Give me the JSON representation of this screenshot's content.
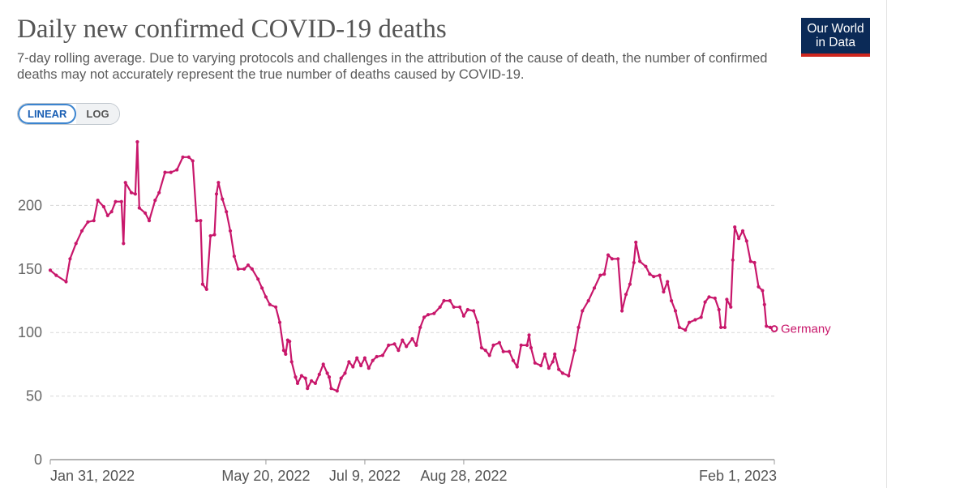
{
  "header": {
    "title": "Daily new confirmed COVID-19 deaths",
    "subtitle": "7-day rolling average. Due to varying protocols and challenges in the attribution of the cause of death, the number of confirmed deaths may not accurately represent the true number of deaths caused by COVID-19.",
    "logo_line1": "Our World",
    "logo_line2": "in Data"
  },
  "scale_toggle": {
    "linear_label": "LINEAR",
    "log_label": "LOG",
    "selected": "linear"
  },
  "colors": {
    "series": "#c8176b",
    "logo_bg": "#0b2a57",
    "logo_bar": "#ce261e",
    "grid": "#d8d8d8"
  },
  "chart_data": {
    "type": "line",
    "title": "Daily new confirmed COVID-19 deaths",
    "xlabel": "",
    "ylabel": "",
    "x_range": [
      "2022-01-31",
      "2023-02-01"
    ],
    "ylim": [
      0,
      250
    ],
    "y_ticks": [
      0,
      50,
      100,
      150,
      200
    ],
    "x_ticks": [
      {
        "date": "2022-01-31",
        "label": "Jan 31, 2022"
      },
      {
        "date": "2022-05-20",
        "label": "May 20, 2022"
      },
      {
        "date": "2022-07-09",
        "label": "Jul 9, 2022"
      },
      {
        "date": "2022-08-28",
        "label": "Aug 28, 2022"
      },
      {
        "date": "2023-02-01",
        "label": "Feb 1, 2023"
      }
    ],
    "grid": "horizontal dashed",
    "series": [
      {
        "name": "Germany",
        "points": [
          [
            "2022-01-31",
            149
          ],
          [
            "2022-02-03",
            145
          ],
          [
            "2022-02-08",
            140
          ],
          [
            "2022-02-10",
            158
          ],
          [
            "2022-02-13",
            170
          ],
          [
            "2022-02-16",
            180
          ],
          [
            "2022-02-19",
            187
          ],
          [
            "2022-02-22",
            188
          ],
          [
            "2022-02-24",
            204
          ],
          [
            "2022-02-27",
            199
          ],
          [
            "2022-03-01",
            192
          ],
          [
            "2022-03-03",
            195
          ],
          [
            "2022-03-05",
            203
          ],
          [
            "2022-03-08",
            203
          ],
          [
            "2022-03-09",
            170
          ],
          [
            "2022-03-10",
            218
          ],
          [
            "2022-03-13",
            210
          ],
          [
            "2022-03-15",
            209
          ],
          [
            "2022-03-16",
            250
          ],
          [
            "2022-03-17",
            198
          ],
          [
            "2022-03-20",
            194
          ],
          [
            "2022-03-22",
            188
          ],
          [
            "2022-03-25",
            204
          ],
          [
            "2022-03-27",
            210
          ],
          [
            "2022-03-30",
            226
          ],
          [
            "2022-04-02",
            226
          ],
          [
            "2022-04-05",
            228
          ],
          [
            "2022-04-08",
            238
          ],
          [
            "2022-04-11",
            238
          ],
          [
            "2022-04-13",
            235
          ],
          [
            "2022-04-15",
            188
          ],
          [
            "2022-04-17",
            188
          ],
          [
            "2022-04-18",
            138
          ],
          [
            "2022-04-20",
            134
          ],
          [
            "2022-04-22",
            176
          ],
          [
            "2022-04-24",
            177
          ],
          [
            "2022-04-25",
            209
          ],
          [
            "2022-04-26",
            218
          ],
          [
            "2022-04-28",
            205
          ],
          [
            "2022-04-30",
            195
          ],
          [
            "2022-05-02",
            180
          ],
          [
            "2022-05-04",
            160
          ],
          [
            "2022-05-06",
            150
          ],
          [
            "2022-05-09",
            150
          ],
          [
            "2022-05-11",
            153
          ],
          [
            "2022-05-13",
            150
          ],
          [
            "2022-05-16",
            142
          ],
          [
            "2022-05-18",
            135
          ],
          [
            "2022-05-20",
            128
          ],
          [
            "2022-05-22",
            122
          ],
          [
            "2022-05-25",
            120
          ],
          [
            "2022-05-27",
            108
          ],
          [
            "2022-05-29",
            86
          ],
          [
            "2022-05-30",
            83
          ],
          [
            "2022-05-31",
            94
          ],
          [
            "2022-06-01",
            93
          ],
          [
            "2022-06-02",
            77
          ],
          [
            "2022-06-04",
            65
          ],
          [
            "2022-06-05",
            60
          ],
          [
            "2022-06-07",
            66
          ],
          [
            "2022-06-09",
            64
          ],
          [
            "2022-06-10",
            56
          ],
          [
            "2022-06-12",
            62
          ],
          [
            "2022-06-14",
            60
          ],
          [
            "2022-06-16",
            67
          ],
          [
            "2022-06-18",
            75
          ],
          [
            "2022-06-20",
            68
          ],
          [
            "2022-06-21",
            65
          ],
          [
            "2022-06-22",
            56
          ],
          [
            "2022-06-25",
            54
          ],
          [
            "2022-06-27",
            64
          ],
          [
            "2022-06-29",
            68
          ],
          [
            "2022-07-01",
            77
          ],
          [
            "2022-07-03",
            73
          ],
          [
            "2022-07-05",
            80
          ],
          [
            "2022-07-07",
            74
          ],
          [
            "2022-07-09",
            80
          ],
          [
            "2022-07-11",
            72
          ],
          [
            "2022-07-13",
            78
          ],
          [
            "2022-07-15",
            81
          ],
          [
            "2022-07-18",
            82
          ],
          [
            "2022-07-21",
            90
          ],
          [
            "2022-07-24",
            91
          ],
          [
            "2022-07-26",
            86
          ],
          [
            "2022-07-28",
            94
          ],
          [
            "2022-07-30",
            89
          ],
          [
            "2022-08-02",
            95
          ],
          [
            "2022-08-04",
            90
          ],
          [
            "2022-08-06",
            104
          ],
          [
            "2022-08-08",
            112
          ],
          [
            "2022-08-10",
            114
          ],
          [
            "2022-08-13",
            115
          ],
          [
            "2022-08-16",
            120
          ],
          [
            "2022-08-18",
            125
          ],
          [
            "2022-08-21",
            125
          ],
          [
            "2022-08-23",
            120
          ],
          [
            "2022-08-26",
            120
          ],
          [
            "2022-08-28",
            113
          ],
          [
            "2022-08-30",
            118
          ],
          [
            "2022-09-02",
            117
          ],
          [
            "2022-09-04",
            108
          ],
          [
            "2022-09-06",
            88
          ],
          [
            "2022-09-08",
            86
          ],
          [
            "2022-09-10",
            82
          ],
          [
            "2022-09-12",
            90
          ],
          [
            "2022-09-15",
            92
          ],
          [
            "2022-09-17",
            85
          ],
          [
            "2022-09-20",
            85
          ],
          [
            "2022-09-22",
            78
          ],
          [
            "2022-09-24",
            73
          ],
          [
            "2022-09-26",
            90
          ],
          [
            "2022-09-29",
            90
          ],
          [
            "2022-09-30",
            98
          ],
          [
            "2022-10-01",
            88
          ],
          [
            "2022-10-03",
            76
          ],
          [
            "2022-10-06",
            74
          ],
          [
            "2022-10-08",
            83
          ],
          [
            "2022-10-10",
            72
          ],
          [
            "2022-10-12",
            77
          ],
          [
            "2022-10-13",
            83
          ],
          [
            "2022-10-15",
            71
          ],
          [
            "2022-10-17",
            68
          ],
          [
            "2022-10-20",
            66
          ],
          [
            "2022-10-23",
            86
          ],
          [
            "2022-10-25",
            104
          ],
          [
            "2022-10-27",
            117
          ],
          [
            "2022-10-30",
            125
          ],
          [
            "2022-11-02",
            135
          ],
          [
            "2022-11-05",
            145
          ],
          [
            "2022-11-07",
            146
          ],
          [
            "2022-11-09",
            161
          ],
          [
            "2022-11-11",
            158
          ],
          [
            "2022-11-14",
            158
          ],
          [
            "2022-11-16",
            117
          ],
          [
            "2022-11-18",
            130
          ],
          [
            "2022-11-20",
            138
          ],
          [
            "2022-11-22",
            155
          ],
          [
            "2022-11-23",
            171
          ],
          [
            "2022-11-25",
            156
          ],
          [
            "2022-11-28",
            152
          ],
          [
            "2022-11-30",
            146
          ],
          [
            "2022-12-02",
            144
          ],
          [
            "2022-12-05",
            145
          ],
          [
            "2022-12-07",
            132
          ],
          [
            "2022-12-09",
            140
          ],
          [
            "2022-12-11",
            125
          ],
          [
            "2022-12-13",
            117
          ],
          [
            "2022-12-15",
            104
          ],
          [
            "2022-12-18",
            102
          ],
          [
            "2022-12-20",
            108
          ],
          [
            "2022-12-23",
            110
          ],
          [
            "2022-12-26",
            112
          ],
          [
            "2022-12-28",
            124
          ],
          [
            "2022-12-30",
            128
          ],
          [
            "2023-01-02",
            127
          ],
          [
            "2023-01-04",
            118
          ],
          [
            "2023-01-05",
            104
          ],
          [
            "2023-01-07",
            104
          ],
          [
            "2023-01-08",
            126
          ],
          [
            "2023-01-10",
            120
          ],
          [
            "2023-01-11",
            157
          ],
          [
            "2023-01-12",
            183
          ],
          [
            "2023-01-14",
            174
          ],
          [
            "2023-01-16",
            180
          ],
          [
            "2023-01-18",
            172
          ],
          [
            "2023-01-20",
            156
          ],
          [
            "2023-01-22",
            155
          ],
          [
            "2023-01-24",
            136
          ],
          [
            "2023-01-26",
            133
          ],
          [
            "2023-01-27",
            122
          ],
          [
            "2023-01-28",
            105
          ],
          [
            "2023-01-30",
            104
          ],
          [
            "2023-02-01",
            103
          ]
        ]
      }
    ]
  }
}
